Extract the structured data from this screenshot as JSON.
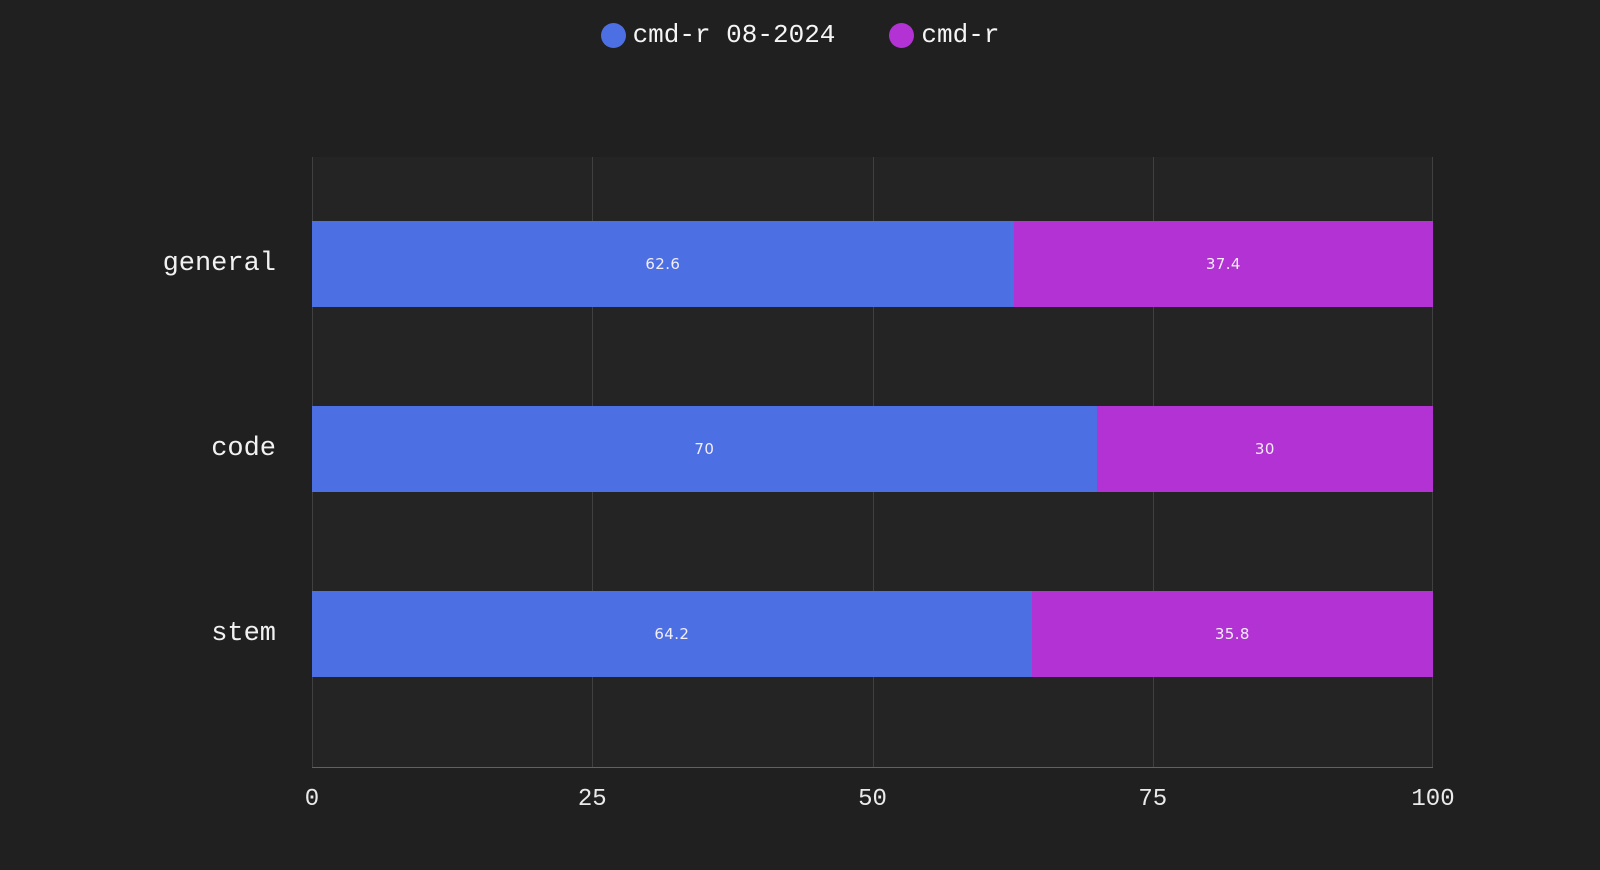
{
  "colors": {
    "background": "#202020",
    "plot_background": "#242424",
    "gridline": "rgba(255,255,255,0.13)",
    "axis_line": "rgba(255,255,255,0.28)",
    "category_text": "#f2f2f2",
    "tick_text": "#eaeaea",
    "bar_label_text": "#f3eef7",
    "series_blue": "#4c6fe4",
    "series_magenta": "#b232d3"
  },
  "chart_data": {
    "type": "bar",
    "orientation": "horizontal",
    "stacked": true,
    "title": "",
    "xlabel": "",
    "ylabel": "",
    "xlim": [
      0,
      100
    ],
    "grid": "vertical",
    "legend_position": "top-center",
    "categories": [
      "general",
      "code",
      "stem"
    ],
    "series": [
      {
        "name": "cmd-r 08-2024",
        "color": "#4c6fe4",
        "values": [
          62.6,
          70,
          64.2
        ],
        "labels": [
          "62.6",
          "70",
          "64.2"
        ]
      },
      {
        "name": "cmd-r",
        "color": "#b232d3",
        "values": [
          37.4,
          30,
          35.8
        ],
        "labels": [
          "37.4",
          "30",
          "35.8"
        ]
      }
    ],
    "x_ticks": [
      "0",
      "25",
      "50",
      "75",
      "100"
    ],
    "x_tick_values": [
      0,
      25,
      50,
      75,
      100
    ]
  }
}
